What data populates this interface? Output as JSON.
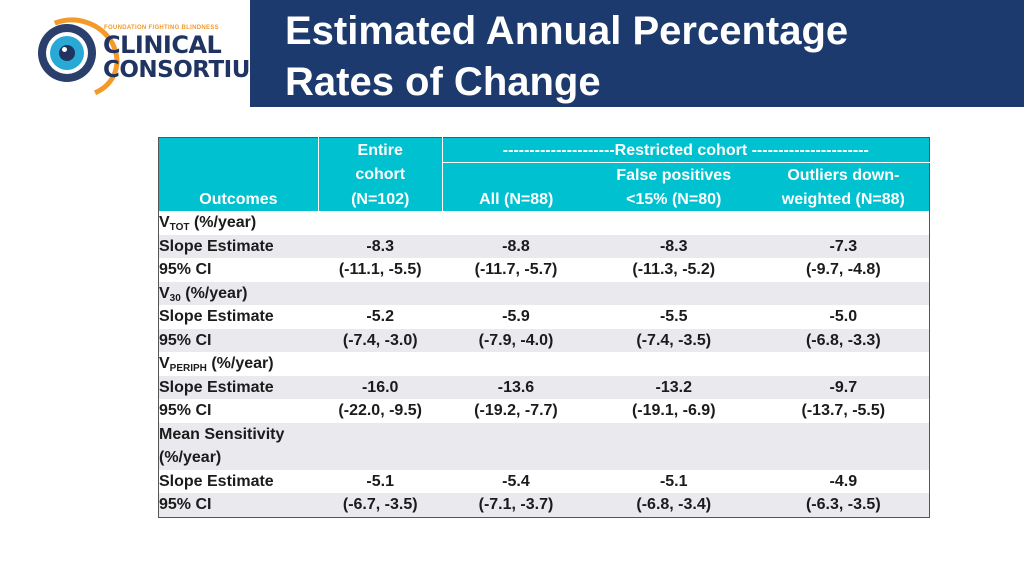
{
  "logo": {
    "tagline": "FOUNDATION FIGHTING BLINDNESS",
    "line1": "CLINICAL",
    "line2": "CONSORTIUM"
  },
  "header": {
    "title_line1": "Estimated Annual Percentage",
    "title_line2": "Rates of Change"
  },
  "colors": {
    "header_band": "#1c3a6e",
    "table_header": "#00c1cf",
    "row_shade": "#e9e9ee",
    "logo_orange": "#f39a2b",
    "logo_blue": "#29a9d6"
  },
  "table": {
    "header": {
      "outcomes": "Outcomes",
      "entire_l1": "Entire",
      "entire_l2": "cohort",
      "entire_l3": "(N=102)",
      "restricted": "---------------------Restricted cohort ----------------------",
      "all": "All (N=88)",
      "fp_l1": "False positives",
      "fp_l2": "<15% (N=80)",
      "od_l1": "Outliers down-",
      "od_l2": "weighted (N=88)"
    },
    "groups": [
      {
        "name_main": "V",
        "name_sub": "TOT",
        "name_suffix": " (%/year)",
        "slope_label": "Slope Estimate",
        "ci_label": "95% CI",
        "slope": [
          "-8.3",
          "-8.8",
          "-8.3",
          "-7.3"
        ],
        "ci": [
          "(-11.1, -5.5)",
          "(-11.7, -5.7)",
          "(-11.3, -5.2)",
          "(-9.7, -4.8)"
        ]
      },
      {
        "name_main": "V",
        "name_sub": "30",
        "name_suffix": " (%/year)",
        "slope_label": "Slope Estimate",
        "ci_label": "95% CI",
        "slope": [
          "-5.2",
          "-5.9",
          "-5.5",
          "-5.0"
        ],
        "ci": [
          "(-7.4, -3.0)",
          "(-7.9, -4.0)",
          "(-7.4, -3.5)",
          "(-6.8, -3.3)"
        ]
      },
      {
        "name_main": "V",
        "name_sub": "PERIPH",
        "name_suffix": " (%/year)",
        "slope_label": "Slope Estimate",
        "ci_label": "95% CI",
        "slope": [
          "-16.0",
          "-13.6",
          "-13.2",
          "-9.7"
        ],
        "ci": [
          "(-22.0, -9.5)",
          "(-19.2, -7.7)",
          "(-19.1, -6.9)",
          "(-13.7, -5.5)"
        ]
      },
      {
        "name_line1": "Mean Sensitivity",
        "name_line2": "(%/year)",
        "slope_label": "Slope Estimate",
        "ci_label": "95% CI",
        "slope": [
          "-5.1",
          "-5.4",
          "-5.1",
          "-4.9"
        ],
        "ci": [
          "(-6.7, -3.5)",
          "(-7.1, -3.7)",
          "(-6.8, -3.4)",
          "(-6.3, -3.5)"
        ]
      }
    ]
  }
}
